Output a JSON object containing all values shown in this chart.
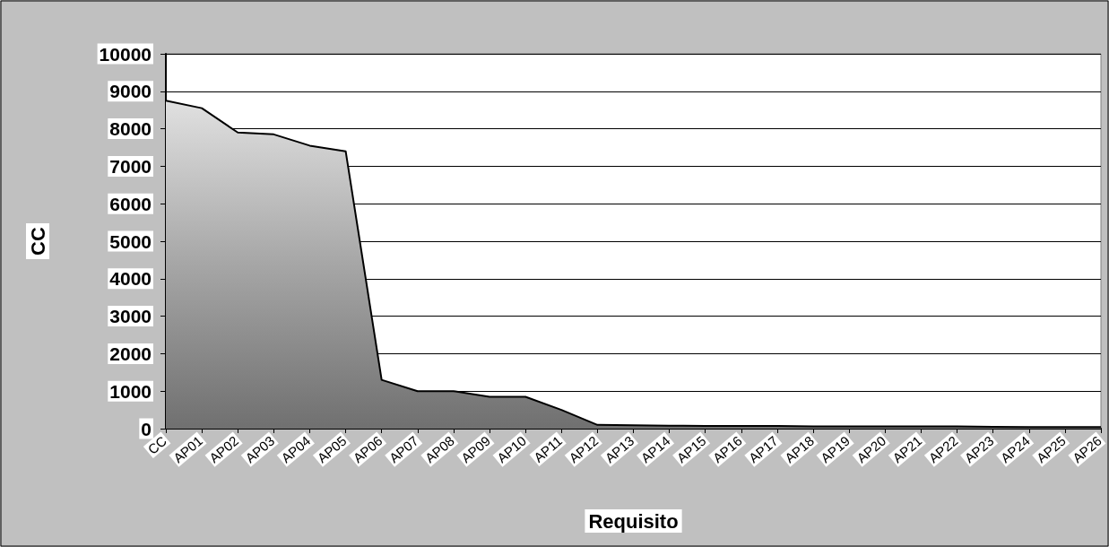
{
  "chart_data": {
    "type": "area",
    "xlabel": "Requisito",
    "ylabel": "CC",
    "categories": [
      "CC",
      "AP01",
      "AP02",
      "AP03",
      "AP04",
      "AP05",
      "AP06",
      "AP07",
      "AP08",
      "AP09",
      "AP10",
      "AP11",
      "AP12",
      "AP13",
      "AP14",
      "AP15",
      "AP16",
      "AP17",
      "AP18",
      "AP19",
      "AP20",
      "AP21",
      "AP22",
      "AP23",
      "AP24",
      "AP25",
      "AP26"
    ],
    "values": [
      8750,
      8550,
      7900,
      7850,
      7550,
      7400,
      1300,
      1000,
      1000,
      850,
      850,
      500,
      100,
      90,
      80,
      70,
      70,
      70,
      60,
      60,
      60,
      60,
      60,
      50,
      40,
      40,
      40
    ],
    "color": "#a6a6a6",
    "ylim": [
      0,
      10000
    ],
    "yticks": [
      0,
      1000,
      2000,
      3000,
      4000,
      5000,
      6000,
      7000,
      8000,
      9000,
      10000
    ],
    "grid": "y",
    "marker": "none",
    "line_style": "solid"
  }
}
